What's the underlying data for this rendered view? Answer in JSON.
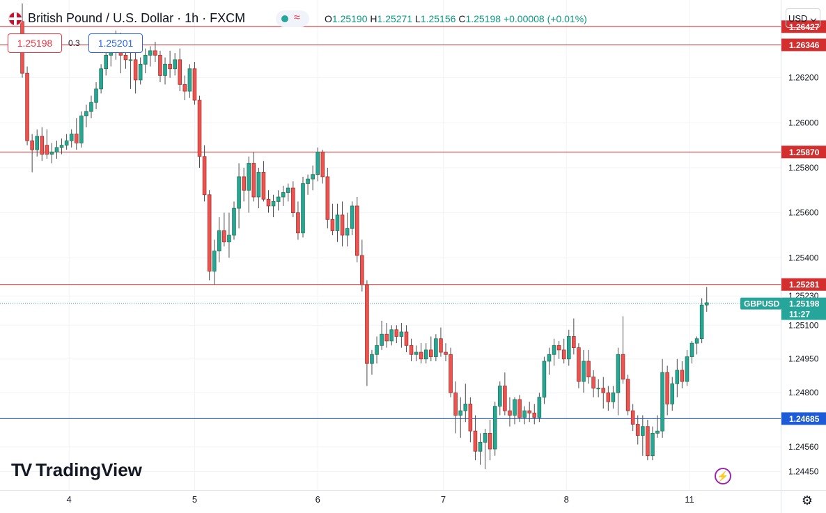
{
  "header": {
    "title": "British Pound / U.S. Dollar · 1h · FXCM",
    "ohlc": {
      "open_label": "O",
      "open": "1.25190",
      "high_label": "H",
      "high": "1.25271",
      "low_label": "L",
      "low": "1.25156",
      "close_label": "C",
      "close": "1.25198",
      "change": "+0.00008 (+0.01%)"
    },
    "bid": "1.25198",
    "spread": "0.3",
    "ask": "1.25201",
    "currency": "USD"
  },
  "icons": [
    "gb-us-flag-icon",
    "status-dot-icon",
    "wave-icon",
    "chevron-down-icon",
    "lightning-icon",
    "gear-icon"
  ],
  "brand": {
    "name": "TradingView"
  },
  "colors": {
    "up": "#26a69a",
    "up_border": "#1f7a4d",
    "down": "#ef5350",
    "down_border": "#a3332f",
    "support_resistance": "#d32f2f",
    "support_blue": "#1e5bd6",
    "price_label": "#26a69a"
  },
  "chart_data": {
    "type": "candlestick",
    "symbol": "GBPUSD",
    "ylim": [
      1.2438,
      1.2653
    ],
    "x_ticks": [
      {
        "label": "4",
        "bar": 9.5
      },
      {
        "label": "5",
        "bar": 35
      },
      {
        "label": "6",
        "bar": 60
      },
      {
        "label": "7",
        "bar": 85.5
      },
      {
        "label": "8",
        "bar": 110.5
      },
      {
        "label": "11",
        "bar": 135.5
      }
    ],
    "y_ticks": [
      "1.26200",
      "1.26000",
      "1.25800",
      "1.25600",
      "1.25400",
      "1.25230",
      "1.25100",
      "1.24950",
      "1.24800",
      "1.24560",
      "1.24450"
    ],
    "y_tick_values": [
      1.262,
      1.26,
      1.258,
      1.256,
      1.254,
      1.2523,
      1.251,
      1.2495,
      1.248,
      1.2456,
      1.2445
    ],
    "levels": [
      {
        "value": 1.26427,
        "label": "1.26427",
        "color": "#d32f2f"
      },
      {
        "value": 1.26346,
        "label": "1.26346",
        "color": "#d32f2f"
      },
      {
        "value": 1.2587,
        "label": "1.25870",
        "color": "#d32f2f"
      },
      {
        "value": 1.25281,
        "label": "1.25281",
        "color": "#d32f2f"
      },
      {
        "value": 1.24685,
        "label": "1.24685",
        "color": "#1e5bd6"
      }
    ],
    "current_price": {
      "value": 1.25198,
      "label": "1.25198",
      "countdown": "11:27"
    },
    "candles": [
      [
        1.2645,
        1.2653,
        1.262,
        1.2622
      ],
      [
        1.2622,
        1.2625,
        1.259,
        1.2592
      ],
      [
        1.2592,
        1.2595,
        1.2578,
        1.2588
      ],
      [
        1.2588,
        1.2597,
        1.2585,
        1.2594
      ],
      [
        1.2594,
        1.2598,
        1.2583,
        1.2586
      ],
      [
        1.259,
        1.2597,
        1.2584,
        1.2586
      ],
      [
        1.2586,
        1.2591,
        1.2582,
        1.2587
      ],
      [
        1.2587,
        1.2592,
        1.2584,
        1.2589
      ],
      [
        1.2589,
        1.2593,
        1.2586,
        1.259
      ],
      [
        1.259,
        1.2595,
        1.2588,
        1.2592
      ],
      [
        1.2592,
        1.2597,
        1.2589,
        1.2595
      ],
      [
        1.2595,
        1.2602,
        1.2588,
        1.2591
      ],
      [
        1.2591,
        1.2605,
        1.2589,
        1.2603
      ],
      [
        1.2603,
        1.2608,
        1.2598,
        1.2605
      ],
      [
        1.2605,
        1.2612,
        1.2602,
        1.2609
      ],
      [
        1.2609,
        1.2618,
        1.2606,
        1.2615
      ],
      [
        1.2615,
        1.2626,
        1.2613,
        1.2624
      ],
      [
        1.2624,
        1.2633,
        1.2621,
        1.263
      ],
      [
        1.263,
        1.2636,
        1.2625,
        1.2632
      ],
      [
        1.2632,
        1.2641,
        1.2628,
        1.2638
      ],
      [
        1.2638,
        1.264,
        1.2622,
        1.263
      ],
      [
        1.263,
        1.2636,
        1.2624,
        1.2628
      ],
      [
        1.2628,
        1.2634,
        1.2615,
        1.2628
      ],
      [
        1.2628,
        1.2631,
        1.2613,
        1.2619
      ],
      [
        1.2619,
        1.2629,
        1.2617,
        1.2626
      ],
      [
        1.2626,
        1.2633,
        1.2622,
        1.263
      ],
      [
        1.263,
        1.2634,
        1.2625,
        1.2632
      ],
      [
        1.2632,
        1.2636,
        1.2627,
        1.263
      ],
      [
        1.263,
        1.2632,
        1.2618,
        1.2621
      ],
      [
        1.2621,
        1.2629,
        1.2617,
        1.2626
      ],
      [
        1.2626,
        1.2632,
        1.262,
        1.2624
      ],
      [
        1.2624,
        1.2631,
        1.2621,
        1.2628
      ],
      [
        1.2628,
        1.2633,
        1.2614,
        1.2617
      ],
      [
        1.2617,
        1.2621,
        1.261,
        1.2614
      ],
      [
        1.2614,
        1.2626,
        1.2611,
        1.2624
      ],
      [
        1.2624,
        1.2627,
        1.2608,
        1.261
      ],
      [
        1.261,
        1.2612,
        1.258,
        1.2585
      ],
      [
        1.2585,
        1.259,
        1.2565,
        1.2568
      ],
      [
        1.2568,
        1.257,
        1.253,
        1.2534
      ],
      [
        1.2534,
        1.2548,
        1.2528,
        1.2543
      ],
      [
        1.2543,
        1.2558,
        1.2538,
        1.2552
      ],
      [
        1.2552,
        1.256,
        1.2545,
        1.2547
      ],
      [
        1.2547,
        1.256,
        1.254,
        1.255
      ],
      [
        1.255,
        1.2565,
        1.2548,
        1.2562
      ],
      [
        1.2562,
        1.2582,
        1.2553,
        1.2576
      ],
      [
        1.2576,
        1.258,
        1.2565,
        1.257
      ],
      [
        1.257,
        1.2585,
        1.256,
        1.2582
      ],
      [
        1.2582,
        1.2587,
        1.2565,
        1.2567
      ],
      [
        1.2567,
        1.258,
        1.2562,
        1.2578
      ],
      [
        1.2578,
        1.2583,
        1.2565,
        1.2566
      ],
      [
        1.2566,
        1.257,
        1.256,
        1.2563
      ],
      [
        1.2563,
        1.2568,
        1.2558,
        1.2565
      ],
      [
        1.2565,
        1.257,
        1.2561,
        1.2567
      ],
      [
        1.2567,
        1.2572,
        1.2563,
        1.2569
      ],
      [
        1.2569,
        1.2573,
        1.2565,
        1.2571
      ],
      [
        1.2571,
        1.2574,
        1.2558,
        1.256
      ],
      [
        1.256,
        1.2565,
        1.2548,
        1.2551
      ],
      [
        1.2551,
        1.2576,
        1.2549,
        1.2573
      ],
      [
        1.2573,
        1.2577,
        1.2568,
        1.2575
      ],
      [
        1.2575,
        1.2581,
        1.257,
        1.2577
      ],
      [
        1.2577,
        1.2589,
        1.2574,
        1.2587
      ],
      [
        1.2587,
        1.2588,
        1.2573,
        1.2576
      ],
      [
        1.2576,
        1.258,
        1.2553,
        1.2557
      ],
      [
        1.2557,
        1.2564,
        1.255,
        1.2552
      ],
      [
        1.2552,
        1.2564,
        1.2547,
        1.2559
      ],
      [
        1.2559,
        1.2565,
        1.2545,
        1.255
      ],
      [
        1.255,
        1.256,
        1.2545,
        1.2553
      ],
      [
        1.2553,
        1.2565,
        1.255,
        1.2563
      ],
      [
        1.2563,
        1.2567,
        1.2538,
        1.2541
      ],
      [
        1.2541,
        1.2548,
        1.2525,
        1.2528
      ],
      [
        1.2528,
        1.253,
        1.2483,
        1.2493
      ],
      [
        1.2493,
        1.2499,
        1.2488,
        1.2497
      ],
      [
        1.2497,
        1.2505,
        1.2493,
        1.2501
      ],
      [
        1.2501,
        1.2512,
        1.2499,
        1.2506
      ],
      [
        1.2506,
        1.2511,
        1.25,
        1.2503
      ],
      [
        1.2503,
        1.251,
        1.2501,
        1.2508
      ],
      [
        1.2508,
        1.251,
        1.2502,
        1.2505
      ],
      [
        1.2505,
        1.2511,
        1.25,
        1.2507
      ],
      [
        1.2507,
        1.251,
        1.2498,
        1.2501
      ],
      [
        1.2501,
        1.2504,
        1.2494,
        1.2497
      ],
      [
        1.2497,
        1.2501,
        1.2494,
        1.2498
      ],
      [
        1.2498,
        1.2502,
        1.2493,
        1.2495
      ],
      [
        1.2495,
        1.2502,
        1.2493,
        1.2499
      ],
      [
        1.2499,
        1.2505,
        1.2494,
        1.2496
      ],
      [
        1.2496,
        1.2506,
        1.2494,
        1.2504
      ],
      [
        1.2504,
        1.2509,
        1.2496,
        1.2498
      ],
      [
        1.2498,
        1.2502,
        1.2494,
        1.2497
      ],
      [
        1.2497,
        1.25,
        1.2478,
        1.248
      ],
      [
        1.248,
        1.2485,
        1.2462,
        1.247
      ],
      [
        1.247,
        1.2478,
        1.246,
        1.2472
      ],
      [
        1.2472,
        1.2484,
        1.2467,
        1.2475
      ],
      [
        1.2475,
        1.2478,
        1.2458,
        1.2463
      ],
      [
        1.2463,
        1.247,
        1.245,
        1.2454
      ],
      [
        1.2454,
        1.2462,
        1.2448,
        1.2458
      ],
      [
        1.2458,
        1.2464,
        1.2446,
        1.2462
      ],
      [
        1.2462,
        1.2468,
        1.245,
        1.2455
      ],
      [
        1.2455,
        1.2476,
        1.2452,
        1.2474
      ],
      [
        1.2474,
        1.2485,
        1.247,
        1.2483
      ],
      [
        1.2483,
        1.2489,
        1.247,
        1.2472
      ],
      [
        1.2472,
        1.2478,
        1.2465,
        1.247
      ],
      [
        1.247,
        1.2478,
        1.2466,
        1.2477
      ],
      [
        1.2477,
        1.2479,
        1.2467,
        1.2469
      ],
      [
        1.2469,
        1.2474,
        1.2466,
        1.2472
      ],
      [
        1.2472,
        1.2476,
        1.2467,
        1.2471
      ],
      [
        1.2471,
        1.2475,
        1.2466,
        1.2469
      ],
      [
        1.2469,
        1.248,
        1.2467,
        1.2478
      ],
      [
        1.2478,
        1.2496,
        1.2475,
        1.2494
      ],
      [
        1.2494,
        1.25,
        1.2488,
        1.2497
      ],
      [
        1.2497,
        1.2504,
        1.2492,
        1.2501
      ],
      [
        1.2501,
        1.2503,
        1.2495,
        1.2499
      ],
      [
        1.2499,
        1.2504,
        1.2493,
        1.2495
      ],
      [
        1.2495,
        1.2508,
        1.2492,
        1.2505
      ],
      [
        1.2505,
        1.2513,
        1.2497,
        1.25
      ],
      [
        1.25,
        1.2502,
        1.2482,
        1.2485
      ],
      [
        1.2485,
        1.2499,
        1.248,
        1.2494
      ],
      [
        1.2494,
        1.2499,
        1.2484,
        1.2487
      ],
      [
        1.2487,
        1.249,
        1.2478,
        1.2482
      ],
      [
        1.2482,
        1.2486,
        1.2478,
        1.2482
      ],
      [
        1.2482,
        1.2487,
        1.2473,
        1.248
      ],
      [
        1.248,
        1.2483,
        1.2472,
        1.2476
      ],
      [
        1.2476,
        1.2483,
        1.2473,
        1.248
      ],
      [
        1.248,
        1.25,
        1.247,
        1.2497
      ],
      [
        1.2497,
        1.2514,
        1.2484,
        1.2486
      ],
      [
        1.2486,
        1.2488,
        1.247,
        1.2472
      ],
      [
        1.2472,
        1.2475,
        1.2463,
        1.2466
      ],
      [
        1.2466,
        1.247,
        1.2457,
        1.2461
      ],
      [
        1.2461,
        1.247,
        1.2452,
        1.2465
      ],
      [
        1.2465,
        1.2468,
        1.245,
        1.2452
      ],
      [
        1.2452,
        1.2465,
        1.245,
        1.2462
      ],
      [
        1.2462,
        1.247,
        1.246,
        1.2463
      ],
      [
        1.2463,
        1.2495,
        1.246,
        1.2489
      ],
      [
        1.2489,
        1.2492,
        1.247,
        1.2475
      ],
      [
        1.2475,
        1.2487,
        1.2472,
        1.2484
      ],
      [
        1.2484,
        1.2495,
        1.2478,
        1.249
      ],
      [
        1.249,
        1.2494,
        1.2482,
        1.2485
      ],
      [
        1.2485,
        1.2499,
        1.2483,
        1.2496
      ],
      [
        1.2496,
        1.2503,
        1.2493,
        1.2502
      ],
      [
        1.2502,
        1.2505,
        1.2497,
        1.2504
      ],
      [
        1.2504,
        1.2522,
        1.2502,
        1.2519
      ],
      [
        1.2519,
        1.2527,
        1.2516,
        1.252
      ]
    ]
  }
}
